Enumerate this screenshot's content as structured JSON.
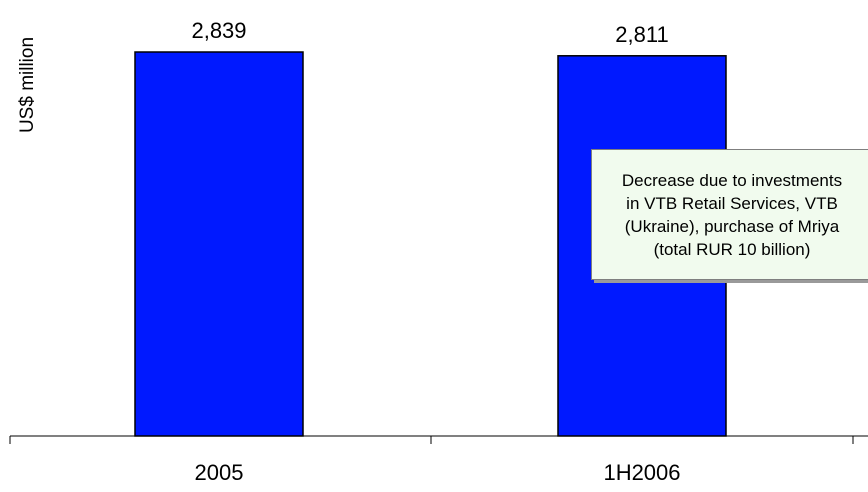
{
  "chart_data": {
    "type": "bar",
    "categories": [
      "2005",
      "1H2006"
    ],
    "values": [
      2839,
      2811
    ],
    "value_labels": [
      "2,839",
      "2,811"
    ],
    "ylabel": "US$ million",
    "bar_color": "#0019ff",
    "grid": false,
    "legend": "none",
    "annotation": "Decrease due to investments\nin VTB Retail Services, VTB\n(Ukraine), purchase of Mriya\n(total RUR 10 billion)"
  }
}
